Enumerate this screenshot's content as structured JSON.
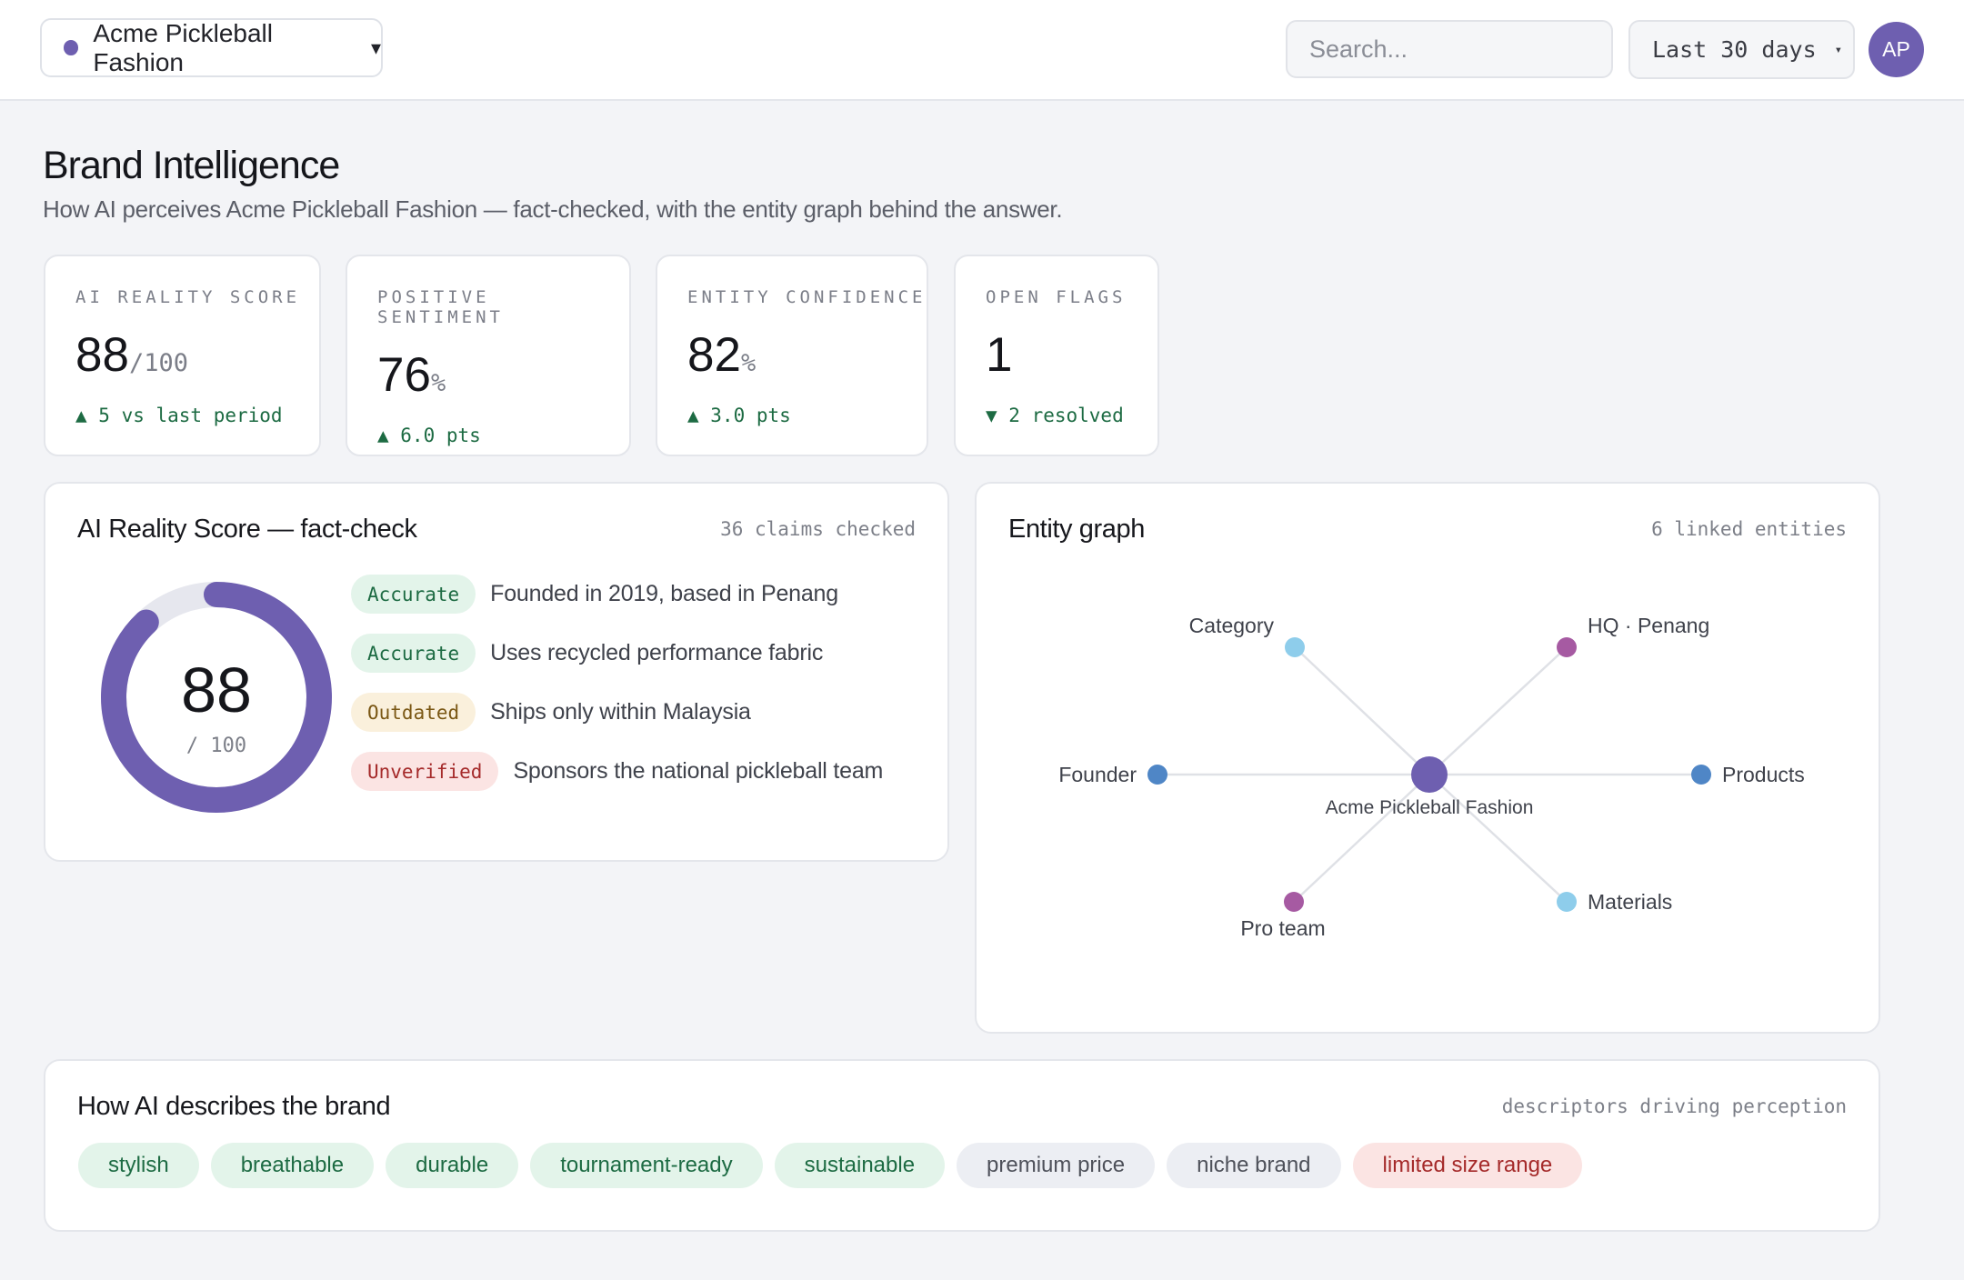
{
  "topbar": {
    "brand_name": "Acme Pickleball Fashion",
    "brand_caret": "▾",
    "search_placeholder": "Search...",
    "range_label": "Last 30 days",
    "range_caret": "▾",
    "avatar_initials": "AP"
  },
  "header": {
    "title": "Brand Intelligence",
    "subtitle": "How AI perceives Acme Pickleball Fashion — fact-checked, with the entity graph behind the answer."
  },
  "kpis": [
    {
      "label": "AI REALITY SCORE",
      "value": "88",
      "unit": "/100",
      "delta": "▲ 5 vs last period"
    },
    {
      "label": "POSITIVE SENTIMENT",
      "value": "76",
      "unit": "%",
      "delta": "▲ 6.0 pts"
    },
    {
      "label": "ENTITY CONFIDENCE",
      "value": "82",
      "unit": "%",
      "delta": "▲ 3.0 pts"
    },
    {
      "label": "OPEN FLAGS",
      "value": "1",
      "unit": "",
      "delta": "▼ 2 resolved"
    }
  ],
  "factcheck": {
    "title": "AI Reality Score — fact-check",
    "meta": "36 claims checked",
    "score": "88",
    "score_max": "/ 100",
    "score_fraction": 0.88,
    "claims": [
      {
        "status": "Accurate",
        "text": "Founded in 2019, based in Penang"
      },
      {
        "status": "Accurate",
        "text": "Uses recycled performance fabric"
      },
      {
        "status": "Outdated",
        "text": "Ships only within Malaysia"
      },
      {
        "status": "Unverified",
        "text": "Sponsors the national pickleball team"
      }
    ]
  },
  "entity_graph": {
    "title": "Entity graph",
    "meta": "6 linked entities",
    "center": "Acme Pickleball Fashion",
    "nodes": [
      {
        "label": "Category",
        "color": "#8ecdeb"
      },
      {
        "label": "HQ · Penang",
        "color": "#a65aa2"
      },
      {
        "label": "Founder",
        "color": "#4f86c6"
      },
      {
        "label": "Products",
        "color": "#4f86c6"
      },
      {
        "label": "Pro team",
        "color": "#a65aa2"
      },
      {
        "label": "Materials",
        "color": "#8ecdeb"
      }
    ]
  },
  "descriptors": {
    "title": "How AI describes the brand",
    "meta": "descriptors driving perception",
    "tags": [
      {
        "label": "stylish",
        "tone": "positive"
      },
      {
        "label": "breathable",
        "tone": "positive"
      },
      {
        "label": "durable",
        "tone": "positive"
      },
      {
        "label": "tournament-ready",
        "tone": "positive"
      },
      {
        "label": "sustainable",
        "tone": "positive"
      },
      {
        "label": "premium price",
        "tone": "neutral"
      },
      {
        "label": "niche brand",
        "tone": "neutral"
      },
      {
        "label": "limited size range",
        "tone": "negative"
      }
    ]
  },
  "colors": {
    "accent": "#6e5fb0",
    "positive_bg": "#e3f4ea",
    "positive_fg": "#1d6b43",
    "warning_bg": "#faf0dc",
    "warning_fg": "#7a5714",
    "negative_bg": "#fbe4e3",
    "negative_fg": "#a52a2a",
    "neutral_bg": "#eceef3",
    "neutral_fg": "#4e515a"
  }
}
